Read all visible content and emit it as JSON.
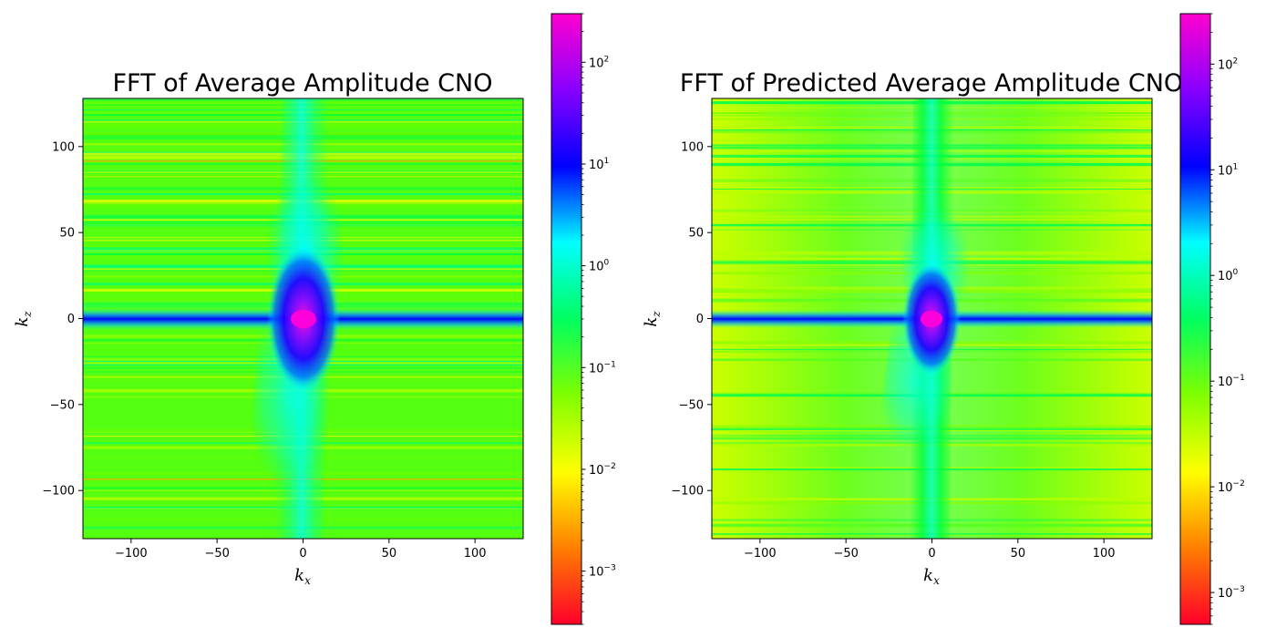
{
  "chart_data": [
    {
      "type": "heatmap",
      "title": "FFT of Average Amplitude CNO",
      "xlabel": "k",
      "xlabel_sub": "x",
      "ylabel": "k",
      "ylabel_sub": "z",
      "xlim": [
        -128,
        128
      ],
      "ylim": [
        -128,
        128
      ],
      "xticks": [
        -100,
        -50,
        0,
        50,
        100
      ],
      "yticks": [
        -100,
        -50,
        0,
        50,
        100
      ],
      "colorbar": {
        "scale": "log",
        "cmap": "gist_rainbow",
        "range": [
          0.0003,
          300
        ],
        "ticks": [
          {
            "base": "10",
            "exp": "2",
            "value": 100
          },
          {
            "base": "10",
            "exp": "1",
            "value": 10
          },
          {
            "base": "10",
            "exp": "0",
            "value": 1
          },
          {
            "base": "10",
            "exp": "−1",
            "value": 0.1
          },
          {
            "base": "10",
            "exp": "−2",
            "value": 0.01
          },
          {
            "base": "10",
            "exp": "−3",
            "value": 0.001
          }
        ]
      },
      "background_level": 0.06,
      "peak_level": 250
    },
    {
      "type": "heatmap",
      "title": "FFT of Predicted Average Amplitude CNO",
      "xlabel": "k",
      "xlabel_sub": "x",
      "ylabel": "k",
      "ylabel_sub": "z",
      "xlim": [
        -128,
        128
      ],
      "ylim": [
        -128,
        128
      ],
      "xticks": [
        -100,
        -50,
        0,
        50,
        100
      ],
      "yticks": [
        -100,
        -50,
        0,
        50,
        100
      ],
      "colorbar": {
        "scale": "log",
        "cmap": "gist_rainbow",
        "range": [
          0.0005,
          300
        ],
        "ticks": [
          {
            "base": "10",
            "exp": "2",
            "value": 100
          },
          {
            "base": "10",
            "exp": "1",
            "value": 10
          },
          {
            "base": "10",
            "exp": "0",
            "value": 1
          },
          {
            "base": "10",
            "exp": "−1",
            "value": 0.1
          },
          {
            "base": "10",
            "exp": "−2",
            "value": 0.01
          },
          {
            "base": "10",
            "exp": "−3",
            "value": 0.001
          }
        ]
      },
      "background_level": 0.02,
      "peak_level": 250
    }
  ]
}
